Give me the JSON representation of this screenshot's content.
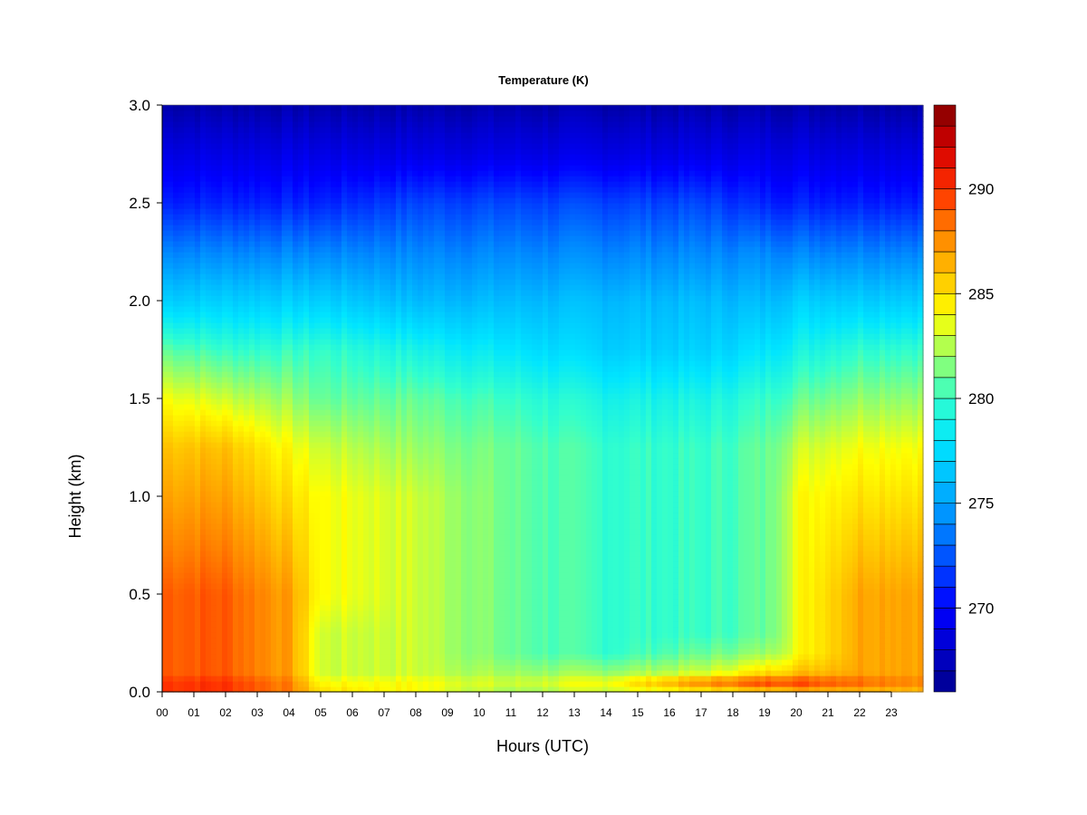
{
  "chart_data": {
    "type": "heatmap",
    "title": "Temperature (K)",
    "xlabel": "Hours (UTC)",
    "ylabel": "Height (km)",
    "x_tick_labels": [
      "00",
      "01",
      "02",
      "03",
      "04",
      "05",
      "06",
      "07",
      "08",
      "09",
      "10",
      "11",
      "12",
      "13",
      "14",
      "15",
      "16",
      "17",
      "18",
      "19",
      "20",
      "21",
      "22",
      "23"
    ],
    "y_tick_labels": [
      "0.0",
      "0.5",
      "1.0",
      "1.5",
      "2.0",
      "2.5",
      "3.0"
    ],
    "xlim": [
      0,
      23.9
    ],
    "ylim": [
      0,
      3.0
    ],
    "colorbar": {
      "tick_labels": [
        "270",
        "275",
        "280",
        "285",
        "290"
      ],
      "range": [
        266,
        294
      ],
      "levels": 28,
      "colors": [
        "#00008b",
        "#0000cd",
        "#0000ff",
        "#0044ff",
        "#0088ff",
        "#00bbff",
        "#00e5ff",
        "#33ffcc",
        "#99ff66",
        "#ffff00",
        "#ffc000",
        "#ff8000",
        "#ff3000",
        "#d40000",
        "#800000"
      ]
    },
    "height_grid_km": [
      0.0,
      0.05,
      0.1,
      0.2,
      0.3,
      0.5,
      0.75,
      1.0,
      1.25,
      1.5,
      1.75,
      2.0,
      2.25,
      2.5,
      2.75,
      3.0
    ],
    "time_grid_hours": [
      0,
      2,
      4,
      5,
      8,
      11,
      14,
      17,
      19,
      20,
      22,
      23.9
    ],
    "temperature_K": [
      [
        290,
        290,
        288,
        285,
        284,
        282,
        283,
        284,
        285,
        286,
        286,
        286
      ],
      [
        290,
        290,
        288,
        284,
        284,
        283,
        284,
        288,
        290,
        290,
        289,
        288
      ],
      [
        289,
        289,
        287,
        283,
        283,
        282,
        282,
        283,
        285,
        286,
        287,
        287
      ],
      [
        289,
        289,
        287,
        283,
        283,
        281,
        280,
        281,
        282,
        284,
        287,
        287
      ],
      [
        289,
        289,
        287,
        283,
        283,
        281,
        280,
        280,
        281,
        284,
        287,
        287
      ],
      [
        289,
        289,
        287,
        284,
        283,
        281,
        280,
        280,
        281,
        284,
        287,
        287
      ],
      [
        288,
        288,
        286,
        284,
        283,
        281,
        280,
        280,
        281,
        284,
        286,
        286
      ],
      [
        287,
        287,
        285,
        284,
        283,
        281,
        280,
        280,
        281,
        284,
        285,
        285
      ],
      [
        286,
        286,
        284,
        283,
        282,
        281,
        280,
        280,
        281,
        283,
        284,
        284
      ],
      [
        284,
        283,
        282,
        281,
        281,
        280,
        279,
        279,
        280,
        281,
        282,
        282
      ],
      [
        281,
        280,
        280,
        280,
        279,
        278,
        277,
        277,
        278,
        279,
        280,
        280
      ],
      [
        277,
        277,
        277,
        277,
        276,
        276,
        276,
        276,
        276,
        277,
        277,
        277
      ],
      [
        274,
        274,
        274,
        274,
        274,
        274,
        274,
        274,
        274,
        274,
        274,
        274
      ],
      [
        271,
        271,
        271,
        271,
        272,
        272,
        272,
        272,
        271,
        271,
        271,
        271
      ],
      [
        269,
        269,
        269,
        269,
        269,
        269,
        269,
        269,
        269,
        269,
        269,
        269
      ],
      [
        267,
        267,
        267,
        267,
        267,
        267,
        267,
        267,
        267,
        267,
        267,
        267
      ]
    ]
  }
}
